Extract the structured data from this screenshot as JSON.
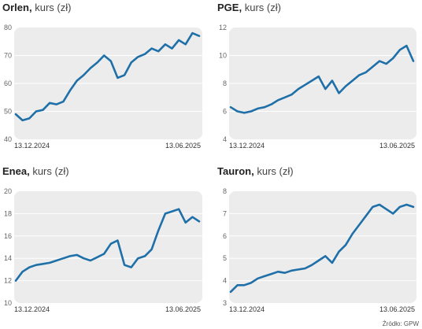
{
  "charts": [
    {
      "name": "Orlen",
      "unit": "kurs (zł)"
    },
    {
      "name": "PGE",
      "unit": "kurs (zł)"
    },
    {
      "name": "Enea",
      "unit": "kurs (zł)"
    },
    {
      "name": "Tauron",
      "unit": "kurs (zł)"
    }
  ],
  "source": "Źródło: GPW",
  "colors": {
    "line": "#1f6fa8",
    "plot_bg": "#ececec",
    "grid": "#ffffff"
  },
  "chart_data": [
    {
      "type": "line",
      "title": "Orlen, kurs (zł)",
      "x_labels": [
        "13.12.2024",
        "13.06.2025"
      ],
      "ylim": [
        40,
        80
      ],
      "yticks": [
        40,
        50,
        60,
        70,
        80
      ],
      "x": [
        "2024-12-13",
        "2024-12-20",
        "2024-12-27",
        "2025-01-03",
        "2025-01-10",
        "2025-01-17",
        "2025-01-24",
        "2025-01-31",
        "2025-02-07",
        "2025-02-14",
        "2025-02-21",
        "2025-02-28",
        "2025-03-07",
        "2025-03-14",
        "2025-03-21",
        "2025-03-28",
        "2025-04-04",
        "2025-04-11",
        "2025-04-18",
        "2025-04-25",
        "2025-05-02",
        "2025-05-09",
        "2025-05-16",
        "2025-05-23",
        "2025-05-30",
        "2025-06-06",
        "2025-06-13",
        "2025-06-20"
      ],
      "series": [
        {
          "values": [
            49,
            46.8,
            47.5,
            50,
            50.5,
            53,
            52.5,
            53.5,
            57.5,
            61,
            63,
            65.5,
            67.5,
            70,
            68,
            62,
            63,
            67.5,
            69.5,
            70.5,
            72.5,
            71.5,
            74,
            72.5,
            75.5,
            74,
            78,
            77
          ]
        }
      ]
    },
    {
      "type": "line",
      "title": "PGE, kurs (zł)",
      "x_labels": [
        "13.12.2024",
        "13.06.2025"
      ],
      "ylim": [
        4,
        12
      ],
      "yticks": [
        4,
        6,
        8,
        10,
        12
      ],
      "x": [
        "2024-12-13",
        "2024-12-20",
        "2024-12-27",
        "2025-01-03",
        "2025-01-10",
        "2025-01-17",
        "2025-01-24",
        "2025-01-31",
        "2025-02-07",
        "2025-02-14",
        "2025-02-21",
        "2025-02-28",
        "2025-03-07",
        "2025-03-14",
        "2025-03-21",
        "2025-03-28",
        "2025-04-04",
        "2025-04-11",
        "2025-04-18",
        "2025-04-25",
        "2025-05-02",
        "2025-05-09",
        "2025-05-16",
        "2025-05-23",
        "2025-05-30",
        "2025-06-06",
        "2025-06-13",
        "2025-06-20"
      ],
      "series": [
        {
          "values": [
            6.3,
            6,
            5.9,
            6,
            6.2,
            6.3,
            6.5,
            6.8,
            7,
            7.2,
            7.6,
            7.9,
            8.2,
            8.5,
            7.6,
            8.2,
            7.3,
            7.8,
            8.2,
            8.6,
            8.8,
            9.2,
            9.6,
            9.4,
            9.8,
            10.4,
            10.7,
            9.6
          ]
        }
      ]
    },
    {
      "type": "line",
      "title": "Enea, kurs (zł)",
      "x_labels": [
        "13.12.2024",
        "13.06.2025"
      ],
      "ylim": [
        10,
        20
      ],
      "yticks": [
        10,
        12,
        14,
        16,
        18,
        20
      ],
      "x": [
        "2024-12-13",
        "2024-12-20",
        "2024-12-27",
        "2025-01-03",
        "2025-01-10",
        "2025-01-17",
        "2025-01-24",
        "2025-01-31",
        "2025-02-07",
        "2025-02-14",
        "2025-02-21",
        "2025-02-28",
        "2025-03-07",
        "2025-03-14",
        "2025-03-21",
        "2025-03-28",
        "2025-04-04",
        "2025-04-11",
        "2025-04-18",
        "2025-04-25",
        "2025-05-02",
        "2025-05-09",
        "2025-05-16",
        "2025-05-23",
        "2025-05-30",
        "2025-06-06",
        "2025-06-13",
        "2025-06-20"
      ],
      "series": [
        {
          "values": [
            12,
            12.8,
            13.2,
            13.4,
            13.5,
            13.6,
            13.8,
            14,
            14.2,
            14.3,
            14,
            13.8,
            14.1,
            14.4,
            15.3,
            15.6,
            13.4,
            13.2,
            14,
            14.2,
            14.8,
            16.5,
            18,
            18.2,
            18.4,
            17.2,
            17.7,
            17.3
          ]
        }
      ]
    },
    {
      "type": "line",
      "title": "Tauron, kurs (zł)",
      "x_labels": [
        "13.12.2024",
        "13.06.2025"
      ],
      "ylim": [
        3,
        8
      ],
      "yticks": [
        3,
        4,
        5,
        6,
        7,
        8
      ],
      "x": [
        "2024-12-13",
        "2024-12-20",
        "2024-12-27",
        "2025-01-03",
        "2025-01-10",
        "2025-01-17",
        "2025-01-24",
        "2025-01-31",
        "2025-02-07",
        "2025-02-14",
        "2025-02-21",
        "2025-02-28",
        "2025-03-07",
        "2025-03-14",
        "2025-03-21",
        "2025-03-28",
        "2025-04-04",
        "2025-04-11",
        "2025-04-18",
        "2025-04-25",
        "2025-05-02",
        "2025-05-09",
        "2025-05-16",
        "2025-05-23",
        "2025-05-30",
        "2025-06-06",
        "2025-06-13",
        "2025-06-20"
      ],
      "series": [
        {
          "values": [
            3.5,
            3.8,
            3.8,
            3.9,
            4.1,
            4.2,
            4.3,
            4.4,
            4.35,
            4.45,
            4.5,
            4.55,
            4.7,
            4.9,
            5.1,
            4.8,
            5.3,
            5.6,
            6.1,
            6.5,
            6.9,
            7.3,
            7.4,
            7.2,
            7.0,
            7.3,
            7.4,
            7.3
          ]
        }
      ]
    }
  ]
}
